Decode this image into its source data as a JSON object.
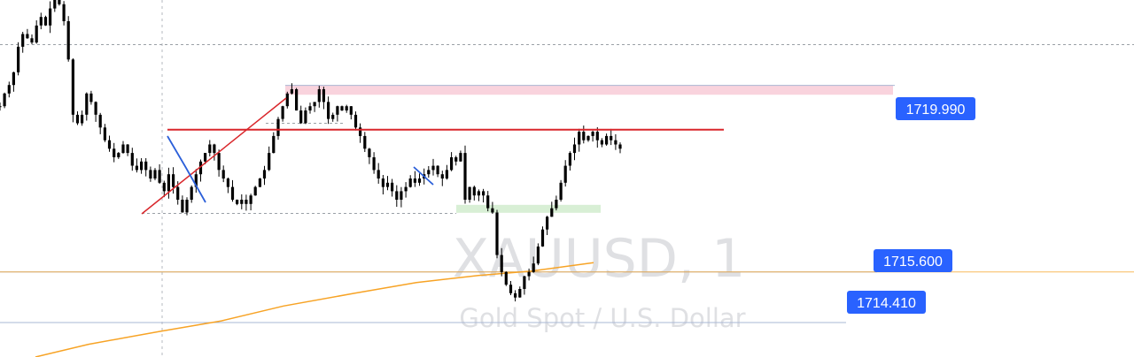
{
  "watermark": {
    "symbol": "XAUUSD, 1",
    "description": "Gold Spot / U.S. Dollar"
  },
  "colors": {
    "background": "#ffffff",
    "candle": "#000000",
    "moving_average": "#f7a325",
    "trend_line_red": "#d9262b",
    "zigzag_blue": "#2b5fd9",
    "supply_zone": "#f9d3dd",
    "demand_zone": "#d8efd5",
    "price_line": "#aab8d6",
    "price_tag_bg": "#2962ff",
    "dashed_level": "#9aa0a6",
    "crosshair": "#b6b9bf",
    "watermark": "#dfe0e3"
  },
  "chart_data": {
    "type": "candlestick",
    "symbol": "XAUUSD",
    "interval": "1",
    "ylim": [
      1713.6,
      1722.0
    ],
    "price_labels": [
      {
        "name": "resistance",
        "value": "1719.990"
      },
      {
        "name": "moving-average",
        "value": "1715.600"
      },
      {
        "name": "support",
        "value": "1714.410"
      }
    ],
    "zones": [
      {
        "name": "supply-zone",
        "top": 1720.0,
        "bottom": 1719.92
      },
      {
        "name": "demand-zone",
        "top": 1717.18,
        "bottom": 1716.95
      }
    ],
    "horizontal_levels": [
      {
        "name": "red-level",
        "price": 1718.95
      },
      {
        "name": "dashed-high-level",
        "price": 1720.95
      },
      {
        "name": "dashed-mid-level",
        "price": 1719.1
      },
      {
        "name": "dashed-low-level",
        "price": 1716.98
      }
    ],
    "closes": [
      1719.5,
      1719.8,
      1720.0,
      1720.3,
      1720.9,
      1721.2,
      1721.1,
      1721.0,
      1721.4,
      1721.6,
      1721.4,
      1721.8,
      1722.0,
      1721.9,
      1721.5,
      1720.6,
      1719.3,
      1719.1,
      1719.3,
      1719.8,
      1719.6,
      1719.3,
      1719.0,
      1718.7,
      1718.5,
      1718.3,
      1718.4,
      1718.6,
      1718.4,
      1718.1,
      1718.0,
      1718.2,
      1718.0,
      1717.8,
      1718.0,
      1717.7,
      1717.5,
      1717.9,
      1717.6,
      1717.3,
      1717.0,
      1717.3,
      1717.6,
      1717.9,
      1718.2,
      1718.4,
      1718.6,
      1718.4,
      1718.0,
      1717.8,
      1717.6,
      1717.3,
      1717.2,
      1717.3,
      1717.2,
      1717.4,
      1717.6,
      1717.8,
      1718.0,
      1718.4,
      1718.8,
      1719.2,
      1719.5,
      1719.8,
      1719.9,
      1719.4,
      1719.1,
      1719.4,
      1719.5,
      1719.6,
      1719.9,
      1719.6,
      1719.2,
      1719.3,
      1719.5,
      1719.4,
      1719.5,
      1719.3,
      1719.0,
      1718.8,
      1718.5,
      1718.3,
      1718.0,
      1717.8,
      1717.6,
      1717.7,
      1717.5,
      1717.3,
      1717.5,
      1717.6,
      1717.8,
      1717.7,
      1717.8,
      1717.9,
      1718.0,
      1718.1,
      1717.9,
      1717.8,
      1718.0,
      1718.3,
      1718.2,
      1718.4,
      1717.3,
      1717.6,
      1717.4,
      1717.5,
      1717.4,
      1717.1,
      1717.0,
      1716.0,
      1715.6,
      1715.3,
      1715.1,
      1715.0,
      1715.2,
      1715.5,
      1715.6,
      1715.8,
      1716.2,
      1716.6,
      1716.9,
      1717.1,
      1717.3,
      1717.7,
      1718.1,
      1718.4,
      1718.6,
      1718.9,
      1718.7,
      1718.8,
      1718.9,
      1718.7,
      1718.6,
      1718.8,
      1718.7,
      1718.6,
      1718.5
    ],
    "moving_average": [
      {
        "x": 40,
        "price": 1713.6
      },
      {
        "x": 100,
        "price": 1713.9
      },
      {
        "x": 180,
        "price": 1714.2
      },
      {
        "x": 250,
        "price": 1714.45
      },
      {
        "x": 320,
        "price": 1714.8
      },
      {
        "x": 400,
        "price": 1715.1
      },
      {
        "x": 470,
        "price": 1715.35
      },
      {
        "x": 540,
        "price": 1715.52
      },
      {
        "x": 600,
        "price": 1715.62
      },
      {
        "x": 670,
        "price": 1715.82
      }
    ],
    "crosshair": {
      "time_line": true
    }
  }
}
